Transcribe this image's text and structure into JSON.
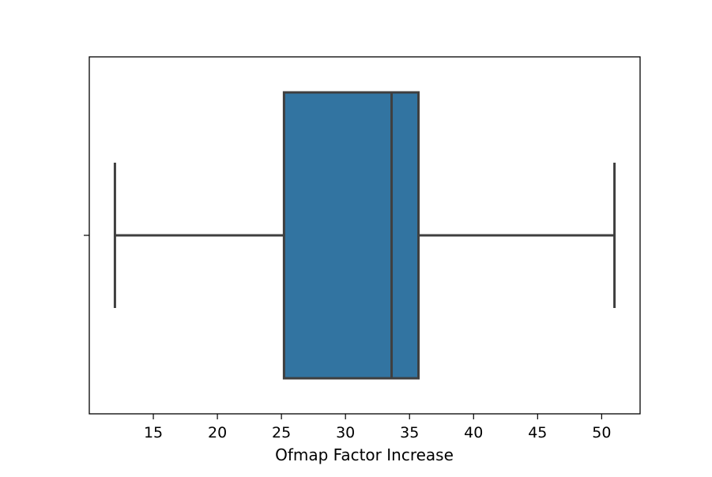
{
  "chart_data": {
    "type": "box",
    "orientation": "horizontal",
    "title": "",
    "xlabel": "Ofmap Factor Increase",
    "ylabel": "",
    "xlim": [
      10.0,
      53.0
    ],
    "x_ticks": [
      15,
      20,
      25,
      30,
      35,
      40,
      45,
      50
    ],
    "y_ticks": [
      ""
    ],
    "series": [
      {
        "whisker_low": 12.0,
        "q1": 25.2,
        "median": 33.6,
        "q3": 35.7,
        "whisker_high": 51.0,
        "color": "#3274a1"
      }
    ],
    "grid": false,
    "legend": "none"
  }
}
